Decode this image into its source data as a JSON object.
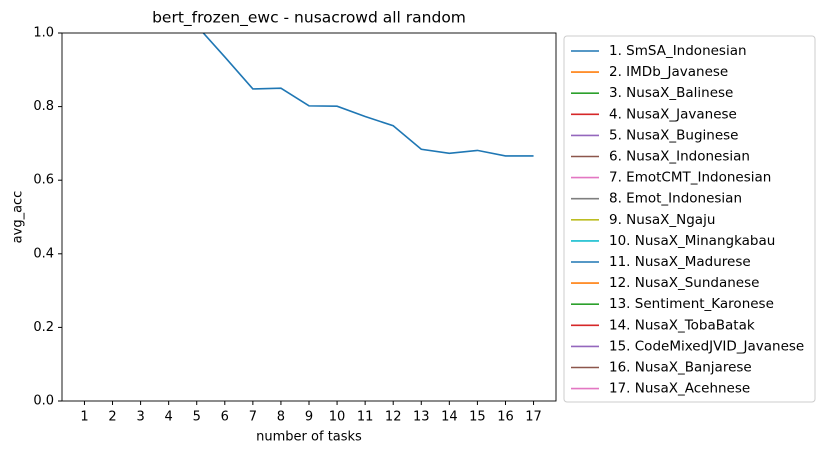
{
  "chart_data": {
    "type": "line",
    "title": "bert_frozen_ewc - nusacrowd all random",
    "x_label": "number of tasks",
    "y_label": "avg_acc",
    "x": [
      1,
      2,
      3,
      4,
      5,
      6,
      7,
      8,
      9,
      10,
      11,
      12,
      13,
      14,
      15,
      16,
      17
    ],
    "xlim": [
      0.2,
      17.8
    ],
    "xticks": [
      1,
      2,
      3,
      4,
      5,
      6,
      7,
      8,
      9,
      10,
      11,
      12,
      13,
      14,
      15,
      16,
      17
    ],
    "ylim": [
      0,
      1
    ],
    "yticks": [
      {
        "value": 0,
        "label": "0.0"
      },
      {
        "value": 0.2,
        "label": "0.2"
      },
      {
        "value": 0.4,
        "label": "0.4"
      },
      {
        "value": 0.6,
        "label": "0.6"
      },
      {
        "value": 0.8,
        "label": "0.8"
      },
      {
        "value": 1,
        "label": "1.0"
      }
    ],
    "grid": false,
    "legend": "outside right",
    "series": [
      {
        "name": "1. SmSA_Indonesian",
        "color": "#1f77b4",
        "values": [
          null,
          null,
          null,
          null,
          1.02,
          0.935,
          0.848,
          0.85,
          0.802,
          0.801,
          0.773,
          0.748,
          0.684,
          0.673,
          0.681,
          0.666,
          0.666
        ]
      },
      {
        "name": "2. IMDb_Javanese",
        "color": "#ff7f0e"
      },
      {
        "name": "3. NusaX_Balinese",
        "color": "#2ca02c"
      },
      {
        "name": "4. NusaX_Javanese",
        "color": "#d62728"
      },
      {
        "name": "5. NusaX_Buginese",
        "color": "#9467bd"
      },
      {
        "name": "6. NusaX_Indonesian",
        "color": "#8c564b"
      },
      {
        "name": "7. EmotCMT_Indonesian",
        "color": "#e377c2"
      },
      {
        "name": "8. Emot_Indonesian",
        "color": "#7f7f7f"
      },
      {
        "name": "9. NusaX_Ngaju",
        "color": "#bcbd22"
      },
      {
        "name": "10. NusaX_Minangkabau",
        "color": "#17becf"
      },
      {
        "name": "11. NusaX_Madurese",
        "color": "#1f77b4"
      },
      {
        "name": "12. NusaX_Sundanese",
        "color": "#ff7f0e"
      },
      {
        "name": "13. Sentiment_Karonese",
        "color": "#2ca02c"
      },
      {
        "name": "14. NusaX_TobaBatak",
        "color": "#d62728"
      },
      {
        "name": "15. CodeMixedJVID_Javanese",
        "color": "#9467bd"
      },
      {
        "name": "16. NusaX_Banjarese",
        "color": "#8c564b"
      },
      {
        "name": "17. NusaX_Acehnese",
        "color": "#e377c2"
      }
    ]
  }
}
